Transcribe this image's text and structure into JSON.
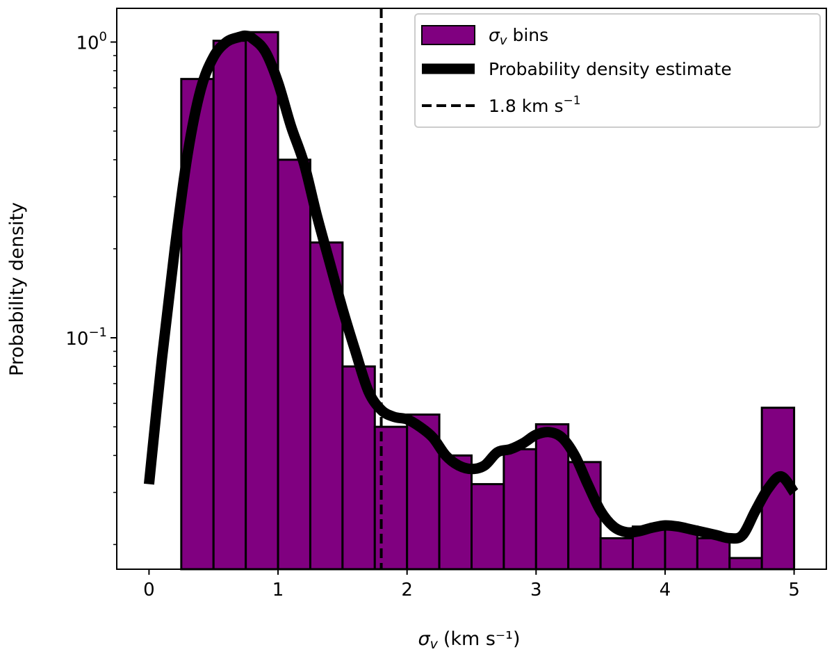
{
  "chart_data": {
    "type": "bar",
    "yscale": "log",
    "xlim": [
      -0.25,
      5.25
    ],
    "ylim": [
      0.0165,
      1.3
    ],
    "xlabel": "(km s⁻¹)",
    "xlabel_symbol": "σ",
    "xlabel_symbol_sub": "v",
    "ylabel": "Probability density",
    "xticks": [
      0,
      1,
      2,
      3,
      4,
      5
    ],
    "yticks": [
      {
        "value": 1.0,
        "base": "10",
        "exponent": "0"
      },
      {
        "value": 0.1,
        "base": "10",
        "exponent": "−1"
      }
    ],
    "grid": false,
    "legend_position": "top-right",
    "legend": {
      "bins_symbol": "σ",
      "bins_symbol_sub": "v",
      "bins_suffix": " bins",
      "density_label": "Probability density estimate",
      "threshold_label": "1.8 km s",
      "threshold_sup": "−1"
    },
    "histogram": {
      "bin_edges": [
        0.25,
        0.5,
        0.75,
        1.0,
        1.25,
        1.5,
        1.75,
        2.0,
        2.25,
        2.5,
        2.75,
        3.0,
        3.25,
        3.5,
        3.75,
        4.0,
        4.25,
        4.5,
        4.75,
        5.0
      ],
      "values": [
        0.75,
        1.01,
        1.08,
        0.4,
        0.21,
        0.08,
        0.05,
        0.055,
        0.04,
        0.032,
        0.042,
        0.051,
        0.038,
        0.021,
        0.023,
        0.023,
        0.021,
        0.018,
        0.058
      ],
      "color": "#800080",
      "edge_color": "#000000"
    },
    "density_curve": {
      "x": [
        0.0,
        0.1,
        0.2,
        0.3,
        0.4,
        0.5,
        0.6,
        0.7,
        0.75,
        0.8,
        0.9,
        1.0,
        1.1,
        1.2,
        1.3,
        1.4,
        1.5,
        1.6,
        1.7,
        1.8,
        1.9,
        2.0,
        2.1,
        2.2,
        2.3,
        2.4,
        2.5,
        2.6,
        2.7,
        2.8,
        2.9,
        3.0,
        3.1,
        3.2,
        3.3,
        3.4,
        3.5,
        3.6,
        3.7,
        3.8,
        3.9,
        4.0,
        4.1,
        4.2,
        4.3,
        4.4,
        4.5,
        4.6,
        4.7,
        4.8,
        4.9,
        5.0
      ],
      "y": [
        0.032,
        0.085,
        0.2,
        0.42,
        0.69,
        0.89,
        1.0,
        1.04,
        1.05,
        1.03,
        0.93,
        0.73,
        0.52,
        0.39,
        0.26,
        0.18,
        0.125,
        0.09,
        0.066,
        0.057,
        0.054,
        0.053,
        0.05,
        0.046,
        0.04,
        0.037,
        0.036,
        0.037,
        0.041,
        0.042,
        0.044,
        0.047,
        0.048,
        0.046,
        0.04,
        0.032,
        0.026,
        0.023,
        0.022,
        0.0222,
        0.0228,
        0.0232,
        0.023,
        0.0225,
        0.022,
        0.0215,
        0.021,
        0.0215,
        0.026,
        0.031,
        0.034,
        0.03
      ],
      "color": "#000000"
    },
    "threshold": {
      "x": 1.8,
      "style": "dashed",
      "color": "#000000"
    }
  }
}
